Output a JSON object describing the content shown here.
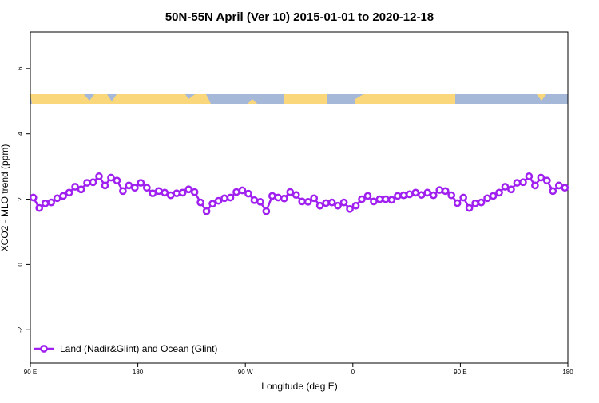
{
  "chart_data": {
    "type": "line",
    "title": "50N-55N April (Ver 10)   2015-01-01 to 2020-12-18",
    "x_label": "Longitude (deg E)",
    "y_label": "XCO2 - MLO trend (ppm)",
    "xlim": [
      90,
      540
    ],
    "ylim": [
      -3.02,
      7.12
    ],
    "xticks": [
      {
        "value": 90,
        "label": "90 E"
      },
      180,
      {
        "value": 270,
        "label": "90 W"
      },
      {
        "value": 360,
        "label": "0"
      },
      {
        "value": 450,
        "label": "90 E"
      },
      {
        "value": 540,
        "label": "180"
      }
    ],
    "yticks": [
      -2,
      0,
      2,
      4,
      6
    ],
    "legend_position": "bottom-left",
    "x": [
      92.5,
      97.5,
      102.5,
      107.5,
      112.5,
      117.5,
      122.5,
      127.5,
      132.5,
      137.5,
      142.5,
      147.5,
      152.5,
      157.5,
      162.5,
      167.5,
      172.5,
      177.5,
      182.5,
      187.5,
      192.5,
      197.5,
      202.5,
      207.5,
      212.5,
      217.5,
      222.5,
      227.5,
      232.5,
      237.5,
      242.5,
      247.5,
      252.5,
      257.5,
      262.5,
      267.5,
      272.5,
      277.5,
      282.5,
      287.5,
      292.5,
      297.5,
      302.5,
      307.5,
      312.5,
      317.5,
      322.5,
      327.5,
      332.5,
      337.5,
      342.5,
      347.5,
      352.5,
      357.5,
      362.5,
      367.5,
      372.5,
      377.5,
      382.5,
      387.5,
      392.5,
      397.5,
      402.5,
      407.5,
      412.5,
      417.5,
      422.5,
      427.5,
      432.5,
      437.5,
      442.5,
      447.5,
      452.5,
      457.5,
      462.5,
      467.5,
      472.5,
      477.5,
      482.5,
      487.5,
      492.5,
      497.5,
      502.5,
      507.5,
      512.5,
      517.5,
      522.5,
      527.5,
      532.5,
      537.5
    ],
    "series": [
      {
        "name": "Land (Nadir&Glint) and Ocean (Glint)",
        "color": "#a020f0",
        "values": [
          2.05,
          1.73,
          1.87,
          1.9,
          2.03,
          2.1,
          2.2,
          2.38,
          2.3,
          2.5,
          2.52,
          2.7,
          2.42,
          2.66,
          2.57,
          2.25,
          2.42,
          2.35,
          2.5,
          2.35,
          2.18,
          2.25,
          2.2,
          2.12,
          2.18,
          2.2,
          2.3,
          2.22,
          1.9,
          1.63,
          1.86,
          1.95,
          2.03,
          2.05,
          2.22,
          2.27,
          2.17,
          1.97,
          1.92,
          1.63,
          2.1,
          2.05,
          2.02,
          2.22,
          2.13,
          1.93,
          1.92,
          2.03,
          1.8,
          1.88,
          1.9,
          1.8,
          1.9,
          1.7,
          1.8,
          2.0,
          2.1,
          1.93,
          2.0,
          2.0,
          1.98,
          2.1,
          2.12,
          2.15,
          2.2,
          2.13,
          2.2,
          2.12,
          2.28,
          2.25,
          2.12,
          1.88,
          2.05,
          1.73,
          1.87,
          1.9,
          2.03,
          2.1,
          2.2,
          2.38,
          2.3,
          2.5,
          2.52,
          2.7,
          2.42,
          2.66,
          2.57,
          2.25,
          2.42,
          2.35
        ]
      }
    ]
  }
}
